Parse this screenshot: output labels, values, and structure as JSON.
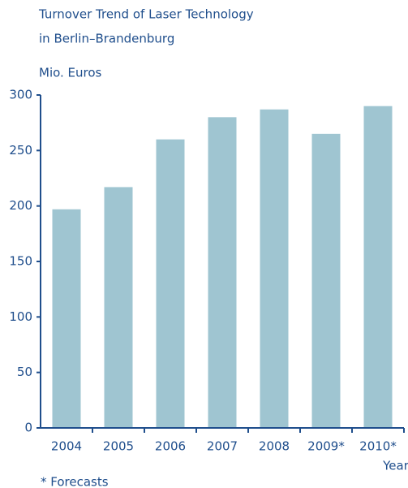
{
  "chart_data": {
    "type": "bar",
    "title": [
      "Turnover Trend of Laser Technology",
      "in Berlin–Brandenburg"
    ],
    "y_label": "Mio. Euros",
    "x_label": "Year",
    "footnote": "* Forecasts",
    "categories": [
      "2004",
      "2005",
      "2006",
      "2007",
      "2008",
      "2009*",
      "2010*"
    ],
    "values": [
      197,
      217,
      260,
      280,
      287,
      265,
      290
    ],
    "color": "#9fc5d1",
    "ylim": [
      0,
      300
    ],
    "yticks": [
      0,
      50,
      100,
      150,
      200,
      250,
      300
    ],
    "grid": false
  }
}
